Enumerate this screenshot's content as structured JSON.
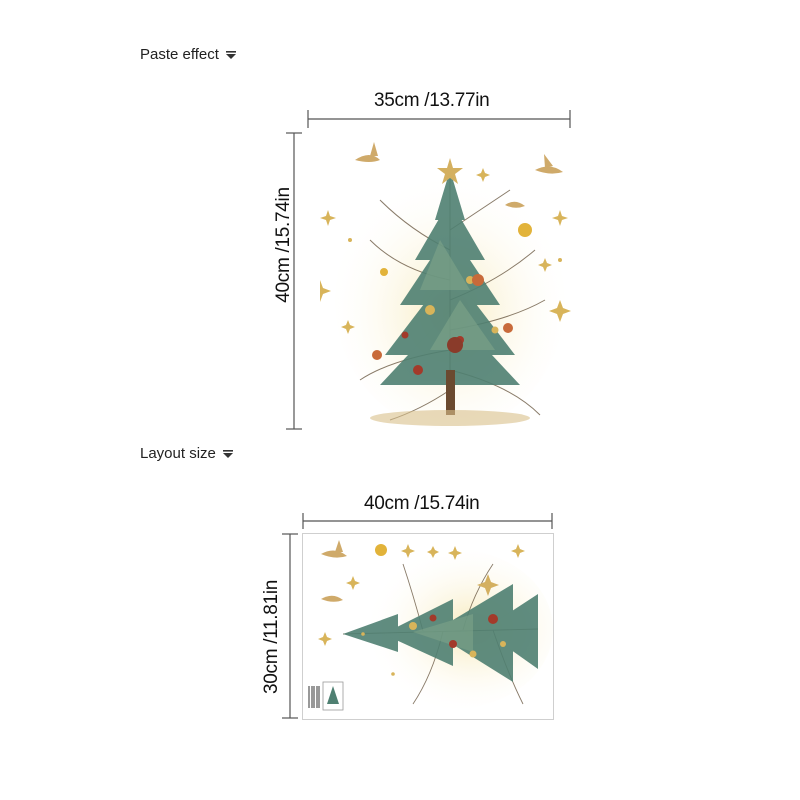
{
  "paste_effect": {
    "label": "Paste effect",
    "width_text": "35cm /13.77in",
    "height_text": "40cm /15.74in"
  },
  "layout_size": {
    "label": "Layout size",
    "width_text": "40cm /15.74in",
    "height_text": "30cm /11.81in"
  },
  "icons": {
    "dropdown": "caret-down-icon"
  },
  "colors": {
    "foliage": "#4a7a6a",
    "gold": "#d8b45a",
    "berry": "#a33a2a",
    "glow": "#f3e2a4"
  }
}
